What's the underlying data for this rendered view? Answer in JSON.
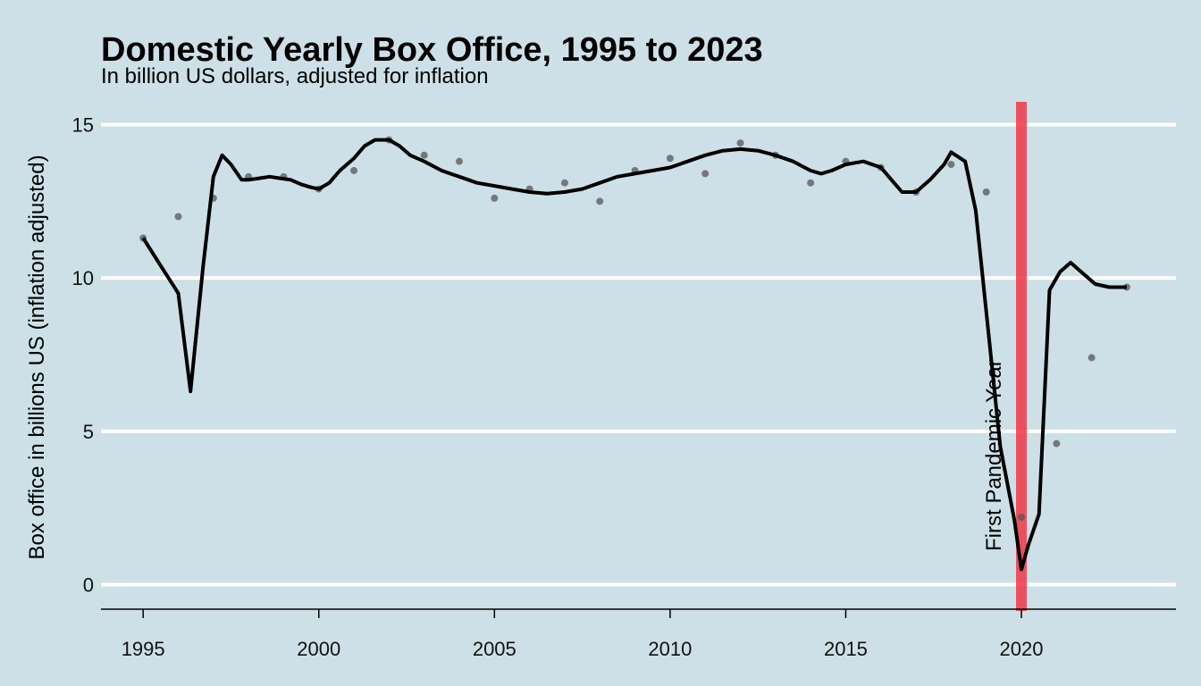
{
  "chart_data": {
    "type": "line",
    "title": "Domestic Yearly Box Office, 1995 to 2023",
    "subtitle": "In billion US dollars, adjusted for inflation",
    "xlabel": "",
    "ylabel": "Box office in billions US (inflation adjusted)",
    "x_ticks": [
      1995,
      2000,
      2005,
      2010,
      2015,
      2020
    ],
    "y_ticks": [
      0,
      5,
      10,
      15
    ],
    "xlim": [
      1993.8,
      2024.4
    ],
    "ylim": [
      -0.8,
      15.8
    ],
    "grid": "horizontal",
    "legend": "none",
    "colors": {
      "background": "#cde0e7",
      "gridline": "#ffffff",
      "line": "#000000",
      "points": "#555555",
      "highlight": "#ee4050"
    },
    "series": [
      {
        "kind": "points",
        "x": [
          1995,
          1996,
          1997,
          1998,
          1999,
          2000,
          2001,
          2002,
          2003,
          2004,
          2005,
          2006,
          2007,
          2008,
          2009,
          2010,
          2011,
          2012,
          2013,
          2014,
          2015,
          2016,
          2017,
          2018,
          2019,
          2020,
          2021,
          2022,
          2023
        ],
        "y": [
          11.3,
          12.0,
          12.6,
          13.3,
          13.3,
          12.9,
          13.5,
          14.5,
          14.0,
          13.8,
          12.6,
          12.9,
          13.1,
          12.5,
          13.5,
          13.9,
          13.4,
          14.4,
          14.0,
          13.1,
          13.8,
          13.6,
          12.8,
          13.7,
          12.8,
          2.2,
          4.6,
          7.4,
          9.7
        ]
      },
      {
        "kind": "smooth",
        "x": [
          1995,
          1995.5,
          1996,
          1996.35,
          1996.7,
          1997.0,
          1997.25,
          1997.5,
          1997.8,
          1998.0,
          1998.3,
          1998.6,
          1998.9,
          1999.2,
          1999.5,
          1999.8,
          2000.0,
          2000.3,
          2000.6,
          2001.0,
          2001.3,
          2001.6,
          2002.0,
          2002.3,
          2002.6,
          2003.0,
          2003.5,
          2004.0,
          2004.5,
          2005.0,
          2005.5,
          2006.0,
          2006.5,
          2007.0,
          2007.5,
          2008.0,
          2008.5,
          2009.0,
          2009.5,
          2010.0,
          2010.5,
          2011.0,
          2011.5,
          2012.0,
          2012.5,
          2013.0,
          2013.5,
          2014.0,
          2014.3,
          2014.6,
          2015.0,
          2015.5,
          2016.0,
          2016.3,
          2016.6,
          2017.0,
          2017.4,
          2017.8,
          2018.0,
          2018.4,
          2018.7,
          2019.0,
          2019.4,
          2019.8,
          2020.0,
          2020.2,
          2020.5,
          2020.8,
          2021.1,
          2021.4,
          2021.8,
          2022.1,
          2022.5,
          2023.0
        ],
        "y": [
          11.3,
          10.4,
          9.5,
          6.3,
          10.3,
          13.3,
          14.0,
          13.7,
          13.2,
          13.2,
          13.25,
          13.3,
          13.25,
          13.2,
          13.05,
          12.95,
          12.9,
          13.1,
          13.5,
          13.9,
          14.3,
          14.5,
          14.5,
          14.3,
          14.0,
          13.8,
          13.5,
          13.3,
          13.1,
          13.0,
          12.9,
          12.8,
          12.75,
          12.8,
          12.9,
          13.1,
          13.3,
          13.4,
          13.5,
          13.6,
          13.8,
          14.0,
          14.15,
          14.2,
          14.15,
          14.0,
          13.8,
          13.5,
          13.4,
          13.5,
          13.7,
          13.8,
          13.6,
          13.2,
          12.8,
          12.8,
          13.2,
          13.7,
          14.1,
          13.8,
          12.2,
          8.9,
          4.5,
          2.1,
          0.5,
          1.3,
          2.3,
          9.6,
          10.2,
          10.5,
          10.1,
          9.8,
          9.7,
          9.7
        ]
      }
    ],
    "highlight": {
      "x": 2020,
      "label": "First Pandemic Year"
    }
  }
}
